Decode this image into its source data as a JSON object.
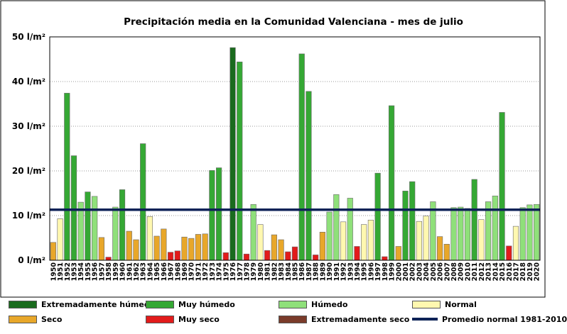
{
  "chart_data": {
    "type": "bar",
    "title": "Precipitación media en la Comunidad Valenciana - mes de julio",
    "ylim": [
      0,
      50
    ],
    "yticks": [
      0,
      10,
      20,
      30,
      40,
      50
    ],
    "ytick_labels": [
      "0 l/m²",
      "10 l/m²",
      "20 l/m²",
      "30 l/m²",
      "40 l/m²",
      "50 l/m²"
    ],
    "categories": [
      "1950",
      "1951",
      "1952",
      "1953",
      "1954",
      "1955",
      "1956",
      "1957",
      "1958",
      "1959",
      "1960",
      "1961",
      "1962",
      "1963",
      "1964",
      "1965",
      "1966",
      "1967",
      "1968",
      "1969",
      "1970",
      "1971",
      "1972",
      "1973",
      "1974",
      "1975",
      "1976",
      "1977",
      "1978",
      "1979",
      "1980",
      "1981",
      "1982",
      "1983",
      "1984",
      "1985",
      "1986",
      "1987",
      "1988",
      "1989",
      "1990",
      "1991",
      "1992",
      "1993",
      "1994",
      "1995",
      "1996",
      "1997",
      "1998",
      "1999",
      "2000",
      "2001",
      "2002",
      "2003",
      "2004",
      "2005",
      "2006",
      "2007",
      "2008",
      "2009",
      "2010",
      "2011",
      "2012",
      "2013",
      "2014",
      "2015",
      "2016",
      "2017",
      "2018",
      "2019",
      "2020"
    ],
    "values": [
      4.0,
      9.3,
      37.4,
      23.4,
      13.0,
      15.3,
      14.3,
      5.1,
      0.7,
      11.9,
      15.8,
      6.5,
      4.6,
      26.1,
      9.8,
      5.4,
      7.0,
      1.8,
      2.1,
      5.2,
      4.9,
      5.8,
      5.9,
      20.1,
      20.7,
      1.7,
      47.6,
      44.4,
      1.4,
      12.5,
      8.0,
      2.2,
      5.7,
      4.6,
      1.9,
      3.0,
      46.2,
      37.8,
      1.2,
      6.3,
      10.8,
      14.7,
      8.6,
      13.9,
      3.1,
      8.0,
      9.0,
      19.5,
      0.8,
      34.6,
      3.1,
      15.5,
      17.6,
      8.7,
      9.9,
      13.1,
      5.3,
      3.6,
      11.8,
      11.9,
      11.6,
      18.1,
      9.1,
      13.1,
      14.4,
      33.1,
      3.2,
      7.6,
      11.8,
      12.4,
      12.5
    ],
    "classes": [
      "seco",
      "normal",
      "muy_humedo",
      "muy_humedo",
      "humedo",
      "muy_humedo",
      "humedo",
      "seco",
      "muy_seco",
      "humedo",
      "muy_humedo",
      "seco",
      "seco",
      "muy_humedo",
      "normal",
      "seco",
      "seco",
      "muy_seco",
      "muy_seco",
      "seco",
      "seco",
      "seco",
      "seco",
      "muy_humedo",
      "muy_humedo",
      "muy_seco",
      "extremadamente_humedo",
      "muy_humedo",
      "muy_seco",
      "humedo",
      "normal",
      "muy_seco",
      "seco",
      "seco",
      "muy_seco",
      "muy_seco",
      "muy_humedo",
      "muy_humedo",
      "muy_seco",
      "seco",
      "humedo",
      "humedo",
      "normal",
      "humedo",
      "muy_seco",
      "normal",
      "normal",
      "muy_humedo",
      "muy_seco",
      "muy_humedo",
      "seco",
      "muy_humedo",
      "muy_humedo",
      "normal",
      "normal",
      "humedo",
      "seco",
      "seco",
      "humedo",
      "humedo",
      "humedo",
      "muy_humedo",
      "normal",
      "humedo",
      "humedo",
      "muy_humedo",
      "muy_seco",
      "normal",
      "humedo",
      "humedo",
      "humedo"
    ],
    "reference_line": {
      "name": "Promedio normal 1981-2010",
      "value": 11.3
    },
    "legend": [
      {
        "key": "extremadamente_humedo",
        "label": "Extremadamente húmedo",
        "color": "#1a6b1e"
      },
      {
        "key": "muy_humedo",
        "label": "Muy húmedo",
        "color": "#35a834"
      },
      {
        "key": "humedo",
        "label": "Húmedo",
        "color": "#8fe07a"
      },
      {
        "key": "normal",
        "label": "Normal",
        "color": "#fff8b0"
      },
      {
        "key": "seco",
        "label": "Seco",
        "color": "#e8a72a"
      },
      {
        "key": "muy_seco",
        "label": "Muy seco",
        "color": "#e21b1b"
      },
      {
        "key": "extremadamente_seco",
        "label": "Extremadamente seco",
        "color": "#7a3b2a"
      },
      {
        "key": "promedio",
        "label": "Promedio normal 1981-2010",
        "color": "#0d2257"
      }
    ],
    "grid": true,
    "legend_position": "bottom"
  }
}
